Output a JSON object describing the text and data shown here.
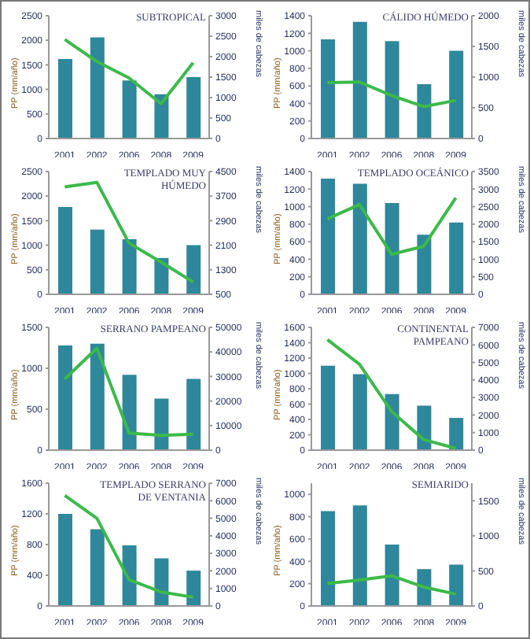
{
  "chart_data": [
    {
      "type": "bar",
      "title": "SUBTROPICAL",
      "categories": [
        "2001",
        "2002",
        "2006",
        "2008",
        "2009"
      ],
      "ylabel": "PP (mm/año)",
      "y2label": "miles de cabezas",
      "ylim": [
        0,
        2500
      ],
      "yticks": [
        0,
        500,
        1000,
        1500,
        2000,
        2500
      ],
      "y2lim": [
        0,
        3000
      ],
      "y2ticks": [
        0,
        500,
        1000,
        1500,
        2000,
        2500,
        3000
      ],
      "marker": "none",
      "series": [
        {
          "color": "#2e879b",
          "values": [
            1620,
            2060,
            1180,
            900,
            1250
          ]
        },
        {
          "type": "line",
          "axis": "y2",
          "color": "#3cb94a",
          "values": [
            2420,
            1880,
            1480,
            850,
            1850
          ]
        }
      ]
    },
    {
      "type": "bar",
      "title": "CÁLIDO HÚMEDO",
      "categories": [
        "2001",
        "2002",
        "2006",
        "2008",
        "2009"
      ],
      "ylabel": "PP (mm/año)",
      "y2label": "miles de cabezas",
      "ylim": [
        0,
        1400
      ],
      "yticks": [
        0,
        200,
        400,
        600,
        800,
        1000,
        1200,
        1400
      ],
      "y2lim": [
        0,
        2000
      ],
      "y2ticks": [
        0,
        500,
        1000,
        1500,
        2000
      ],
      "marker": "none",
      "series": [
        {
          "color": "#2e879b",
          "values": [
            1130,
            1330,
            1110,
            620,
            1000
          ]
        },
        {
          "type": "line",
          "axis": "y2",
          "color": "#3cb94a",
          "values": [
            910,
            920,
            700,
            520,
            620
          ]
        }
      ]
    },
    {
      "type": "bar",
      "title": "TEMPLADO MUY HÚMEDO",
      "categories": [
        "2001",
        "2002",
        "2006",
        "2008",
        "2009"
      ],
      "ylabel": "PP (mm/año)",
      "y2label": "miles de cabezas",
      "ylim": [
        0,
        2500
      ],
      "yticks": [
        0,
        500,
        1000,
        1500,
        2000,
        2500
      ],
      "y2lim": [
        500,
        4500
      ],
      "y2ticks": [
        500,
        1300,
        2100,
        2900,
        3700,
        4500
      ],
      "marker": "none",
      "series": [
        {
          "color": "#2e879b",
          "values": [
            1780,
            1320,
            1120,
            740,
            1000
          ]
        },
        {
          "type": "line",
          "axis": "y2",
          "color": "#3cb94a",
          "values": [
            4000,
            4150,
            2170,
            1550,
            900
          ]
        }
      ]
    },
    {
      "type": "bar",
      "title": "TEMPLADO OCEÁNICO",
      "categories": [
        "2001",
        "2002",
        "2006",
        "2008",
        "2009"
      ],
      "ylabel": "PP (mm/año)",
      "y2label": "miles de cabezas",
      "ylim": [
        0,
        1400
      ],
      "yticks": [
        0,
        200,
        400,
        600,
        800,
        1000,
        1200,
        1400
      ],
      "y2lim": [
        0,
        3500
      ],
      "y2ticks": [
        0,
        500,
        1000,
        1500,
        2000,
        2500,
        3000,
        3500
      ],
      "marker": "none",
      "series": [
        {
          "color": "#2e879b",
          "values": [
            1320,
            1260,
            1040,
            680,
            820
          ]
        },
        {
          "type": "line",
          "axis": "y2",
          "color": "#3cb94a",
          "values": [
            2150,
            2560,
            1140,
            1370,
            2750
          ]
        }
      ]
    },
    {
      "type": "bar",
      "title": "SERRANO PAMPEANO",
      "categories": [
        "2001",
        "2002",
        "2006",
        "2008",
        "2009"
      ],
      "ylabel": "PP (mm/año)",
      "y2label": "miles de cabezas",
      "ylim": [
        0,
        1500
      ],
      "yticks": [
        0,
        500,
        1000,
        1500
      ],
      "y2lim": [
        0,
        50000
      ],
      "y2ticks": [
        0,
        10000,
        20000,
        30000,
        40000,
        50000
      ],
      "marker": "none",
      "series": [
        {
          "color": "#2e879b",
          "values": [
            1280,
            1300,
            920,
            630,
            870
          ]
        },
        {
          "type": "line",
          "axis": "y2",
          "color": "#3cb94a",
          "values": [
            29000,
            41500,
            7000,
            6000,
            6500
          ]
        }
      ]
    },
    {
      "type": "bar",
      "title": "CONTINENTAL PAMPEANO",
      "categories": [
        "2001",
        "2002",
        "2006",
        "2008",
        "2009"
      ],
      "ylabel": "PP (mm/año)",
      "y2label": "miles de cabezas",
      "ylim": [
        0,
        1600
      ],
      "yticks": [
        0,
        200,
        400,
        600,
        800,
        1000,
        1200,
        1400,
        1600
      ],
      "y2lim": [
        0,
        7000
      ],
      "y2ticks": [
        0,
        1000,
        2000,
        3000,
        4000,
        5000,
        6000,
        7000
      ],
      "marker": "none",
      "series": [
        {
          "color": "#2e879b",
          "values": [
            1100,
            990,
            730,
            580,
            420
          ]
        },
        {
          "type": "line",
          "axis": "y2",
          "color": "#3cb94a",
          "values": [
            6300,
            4900,
            2200,
            600,
            100
          ]
        }
      ]
    },
    {
      "type": "bar",
      "title": "TEMPLADO SERRANO DE VENTANIA",
      "categories": [
        "2001",
        "2002",
        "2006",
        "2008",
        "2009"
      ],
      "ylabel": "PP (mm/año)",
      "y2label": "miles de cabezas",
      "ylim": [
        0,
        1600
      ],
      "yticks": [
        0,
        400,
        800,
        1200,
        1600
      ],
      "y2lim": [
        0,
        7000
      ],
      "y2ticks": [
        0,
        1000,
        2000,
        3000,
        4000,
        5000,
        6000,
        7000
      ],
      "marker": "none",
      "series": [
        {
          "color": "#2e879b",
          "values": [
            1200,
            1000,
            790,
            620,
            460
          ]
        },
        {
          "type": "line",
          "axis": "y2",
          "color": "#3cb94a",
          "values": [
            6300,
            5000,
            1500,
            800,
            500
          ]
        }
      ]
    },
    {
      "type": "bar",
      "title": "SEMIARIDO",
      "categories": [
        "2001",
        "2002",
        "2006",
        "2008",
        "2009"
      ],
      "ylabel": "PP (mm/año)",
      "y2label": "miles de cabezas",
      "ylim": [
        0,
        1100
      ],
      "yticks": [
        0,
        200,
        400,
        600,
        800,
        1000
      ],
      "y2lim": [
        0,
        1750
      ],
      "y2ticks": [
        0,
        500,
        1000,
        1500
      ],
      "marker": "none",
      "series": [
        {
          "color": "#2e879b",
          "values": [
            850,
            900,
            550,
            330,
            370
          ]
        },
        {
          "type": "line",
          "axis": "y2",
          "color": "#3cb94a",
          "values": [
            320,
            370,
            430,
            270,
            170
          ]
        }
      ]
    }
  ]
}
